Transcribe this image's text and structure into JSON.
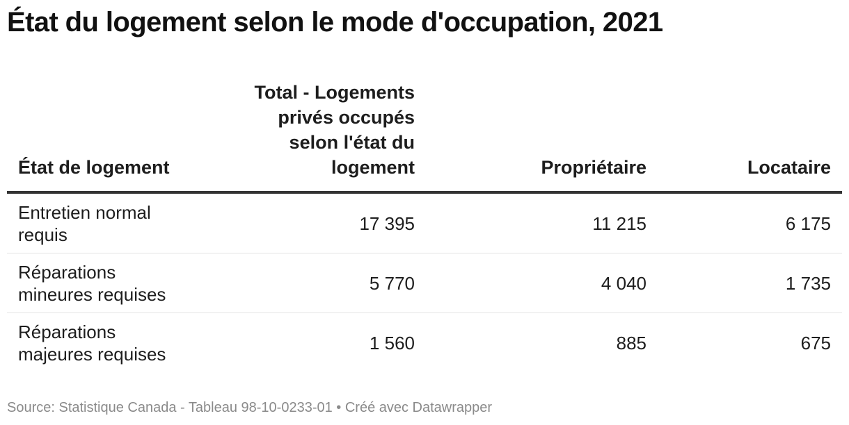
{
  "title": "État du logement selon le mode d'occupation, 2021",
  "source": "Source: Statistique Canada - Tableau 98-10-0233-01 • Créé avec Datawrapper",
  "chart_data": {
    "type": "table",
    "title": "État du logement selon le mode d'occupation, 2021",
    "columns": [
      "État de logement",
      "Total - Logements privés occupés selon l'état du logement",
      "Propriétaire",
      "Locataire"
    ],
    "rows": [
      {
        "label": "Entretien normal requis",
        "values": [
          "17 395",
          "11 215",
          "6 175"
        ]
      },
      {
        "label": "Réparations mineures requises",
        "values": [
          "5 770",
          "4 040",
          "1 735"
        ]
      },
      {
        "label": "Réparations majeures requises",
        "values": [
          "1 560",
          "885",
          "675"
        ]
      }
    ]
  }
}
